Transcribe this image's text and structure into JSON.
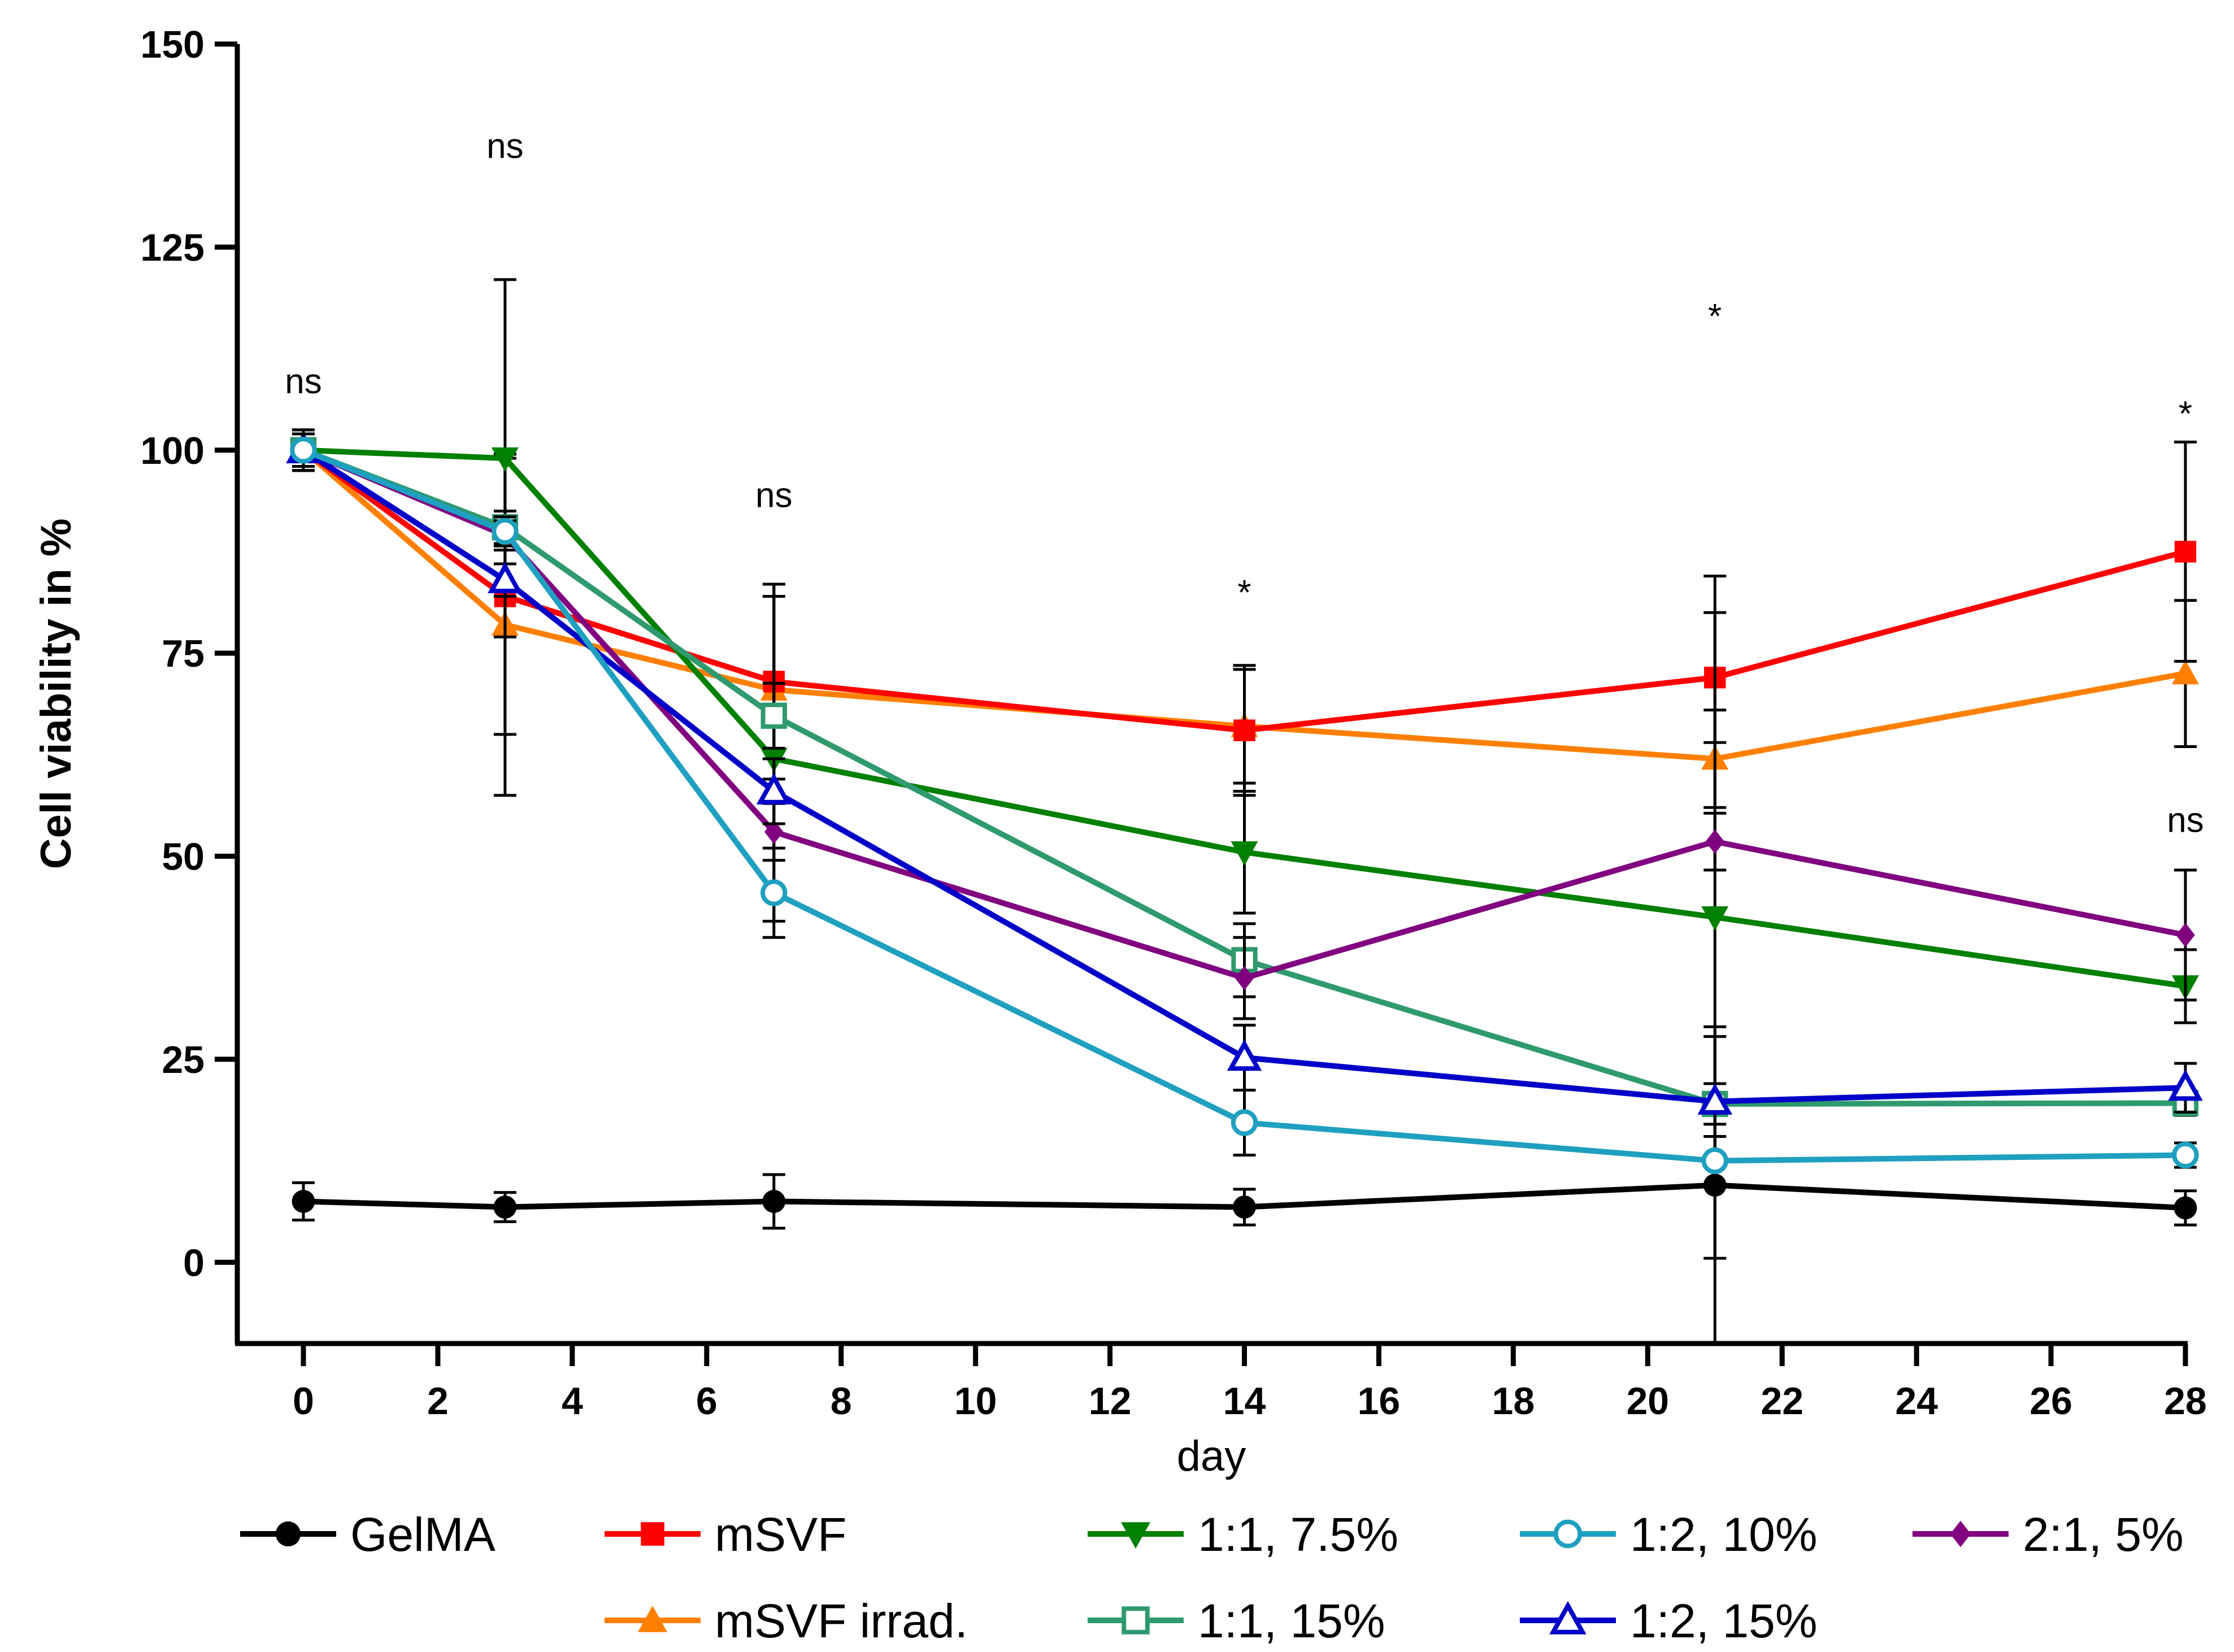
{
  "chart_data": {
    "type": "line",
    "title": "",
    "xlabel": "day",
    "ylabel": "Cell viability in %",
    "xlim": [
      -1,
      28
    ],
    "ylim": [
      -10,
      150
    ],
    "xticks": [
      0,
      2,
      4,
      6,
      8,
      10,
      12,
      14,
      16,
      18,
      20,
      22,
      24,
      26,
      28
    ],
    "yticks": [
      0,
      25,
      50,
      75,
      100,
      125,
      150
    ],
    "grid": false,
    "legend_position": "bottom",
    "series": [
      {
        "name": "GelMA",
        "color": "#000000",
        "marker": "circle",
        "x": [
          0,
          3,
          7,
          14,
          21,
          28
        ],
        "values": [
          7.5,
          6.8,
          7.5,
          6.8,
          9.5,
          6.7
        ],
        "err": [
          2.3,
          1.8,
          3.3,
          2.2,
          19.5,
          2.1
        ]
      },
      {
        "name": "mSVF",
        "color": "#ff0000",
        "marker": "square",
        "x": [
          0,
          3,
          7,
          14,
          21,
          28
        ],
        "values": [
          100,
          82,
          71.5,
          65.5,
          72,
          87.5
        ],
        "err": [
          2.5,
          17.0,
          12.0,
          8.0,
          8.0,
          13.5
        ]
      },
      {
        "name": "1:1, 7.5%",
        "color": "#008000",
        "marker": "triangle-down",
        "x": [
          0,
          3,
          7,
          14,
          21,
          28
        ],
        "values": [
          100,
          99,
          62,
          50.5,
          42.5,
          34
        ],
        "err": [
          2.0,
          22.0,
          20.0,
          7.5,
          42.0,
          4.5
        ]
      },
      {
        "name": "1:2, 10%",
        "color": "#1fa0c0",
        "marker": "circle-open",
        "x": [
          0,
          3,
          7,
          14,
          21,
          28
        ],
        "values": [
          100,
          90,
          45.5,
          17.2,
          12.5,
          13.2
        ],
        "err": [
          2.0,
          1.8,
          5.5,
          4.0,
          3.0,
          1.5
        ]
      },
      {
        "name": "2:1, 5%",
        "color": "#800080",
        "marker": "diamond",
        "x": [
          0,
          3,
          7,
          14,
          21,
          28
        ],
        "values": [
          100,
          89.5,
          53,
          35,
          51.8,
          40.3
        ],
        "err": [
          2.5,
          1.8,
          3.5,
          5.0,
          3.5,
          8.0
        ]
      },
      {
        "name": "mSVF irrad.",
        "color": "#ff7f00",
        "marker": "triangle",
        "x": [
          0,
          3,
          7,
          14,
          21,
          28
        ],
        "values": [
          100,
          78.5,
          70.5,
          66,
          62,
          72.5
        ],
        "err": [
          2.5,
          21.0,
          13.0,
          7.0,
          6.0,
          9.0
        ]
      },
      {
        "name": "1:1, 15%",
        "color": "#2f9a6e",
        "marker": "square-open",
        "x": [
          0,
          3,
          7,
          14,
          21,
          28
        ],
        "values": [
          100,
          90.5,
          67.3,
          37.2,
          19.5,
          19.6
        ],
        "err": [
          2.0,
          2.0,
          4.0,
          4.5,
          2.5,
          1.5
        ]
      },
      {
        "name": "1:2, 15%",
        "color": "#0000c8",
        "marker": "triangle-open",
        "x": [
          0,
          3,
          7,
          14,
          21,
          28
        ],
        "values": [
          100,
          84,
          58,
          25.2,
          19.8,
          21.5
        ],
        "err": [
          2.0,
          2.0,
          4.0,
          4.0,
          8.0,
          3.0
        ]
      }
    ],
    "annotations": [
      {
        "x": 0,
        "y": 107,
        "text": "ns"
      },
      {
        "x": 3,
        "y": 136,
        "text": "ns"
      },
      {
        "x": 7,
        "y": 93,
        "text": "ns"
      },
      {
        "x": 14,
        "y": 81,
        "text": "*"
      },
      {
        "x": 21,
        "y": 115,
        "text": "*"
      },
      {
        "x": 28,
        "y": 103,
        "text": "*"
      },
      {
        "x": 28,
        "y": 53,
        "text": "ns"
      }
    ]
  }
}
